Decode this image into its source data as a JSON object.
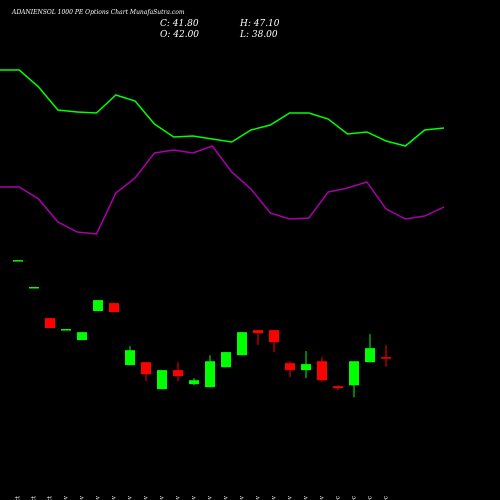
{
  "chart_data": {
    "type": "candlestick",
    "title": "ADANIENSOL 1000 PE Options Chart MunafaSutra.com",
    "header": {
      "close": "C: 41.80",
      "high": "H: 47.10",
      "open": "O: 42.00",
      "low": "L: 38.00"
    },
    "categories": [
      "29 Oct",
      "30 Oct",
      "31 Oct",
      "04 Nov",
      "05 Nov",
      "06 Nov",
      "11 Nov",
      "12 Nov",
      "13 Nov",
      "14 Nov",
      "17 Nov",
      "18 Nov",
      "19 Nov",
      "20 Nov",
      "21 Nov",
      "24 Nov",
      "25 Nov",
      "26 Nov",
      "27 Nov",
      "28 Nov",
      "01 Dec",
      "02 Dec",
      "03 Dec",
      "04 Dec"
    ],
    "open": [
      82.4,
      71.2,
      58.25,
      53.7,
      49.1,
      61.2,
      64.5,
      38.7,
      39.9,
      28.7,
      36.6,
      30.75,
      29.5,
      37.8,
      42.8,
      53.25,
      53.25,
      39.5,
      36.6,
      40.3,
      29.9,
      30.3,
      39.9,
      42.0
    ],
    "high": [
      82.4,
      71.2,
      58.25,
      53.7,
      52.4,
      65.75,
      64.5,
      46.6,
      39.9,
      36.6,
      39.9,
      33.25,
      42.8,
      44.1,
      52.4,
      53.25,
      53.25,
      40.3,
      44.5,
      42.0,
      30.3,
      40.3,
      51.6,
      47.1
    ],
    "low": [
      82.4,
      71.2,
      54.1,
      53.7,
      49.1,
      61.2,
      60.75,
      38.7,
      32.0,
      28.7,
      32.0,
      30.3,
      29.5,
      37.8,
      42.8,
      47.0,
      44.1,
      33.7,
      33.25,
      31.6,
      28.25,
      25.3,
      39.9,
      38.0
    ],
    "close": [
      82.4,
      71.2,
      54.1,
      53.7,
      52.4,
      65.75,
      60.75,
      44.9,
      34.9,
      36.6,
      34.1,
      32.4,
      40.3,
      44.1,
      52.4,
      52.0,
      48.25,
      36.6,
      39.1,
      32.4,
      29.1,
      40.3,
      45.75,
      41.8
    ],
    "up_color": "#00ff00",
    "down_color": "#ff0000",
    "ylim": [
      20,
      86.6
    ],
    "indicator_ylim": [
      0,
      210
    ],
    "indicators": [
      {
        "color": "#00ff00",
        "values": [
          180,
          180,
          163,
          140,
          138,
          137,
          155,
          149,
          126,
          113,
          114,
          111,
          108,
          120,
          125,
          137,
          137,
          131,
          116,
          118,
          109,
          104,
          120,
          122
        ]
      },
      {
        "color": "#aa00aa",
        "values": [
          63,
          63,
          51,
          28,
          18,
          16,
          57,
          72,
          97,
          100,
          97,
          104,
          78,
          61,
          37,
          31,
          32,
          58,
          62,
          68,
          41,
          31,
          34,
          43
        ]
      }
    ]
  }
}
